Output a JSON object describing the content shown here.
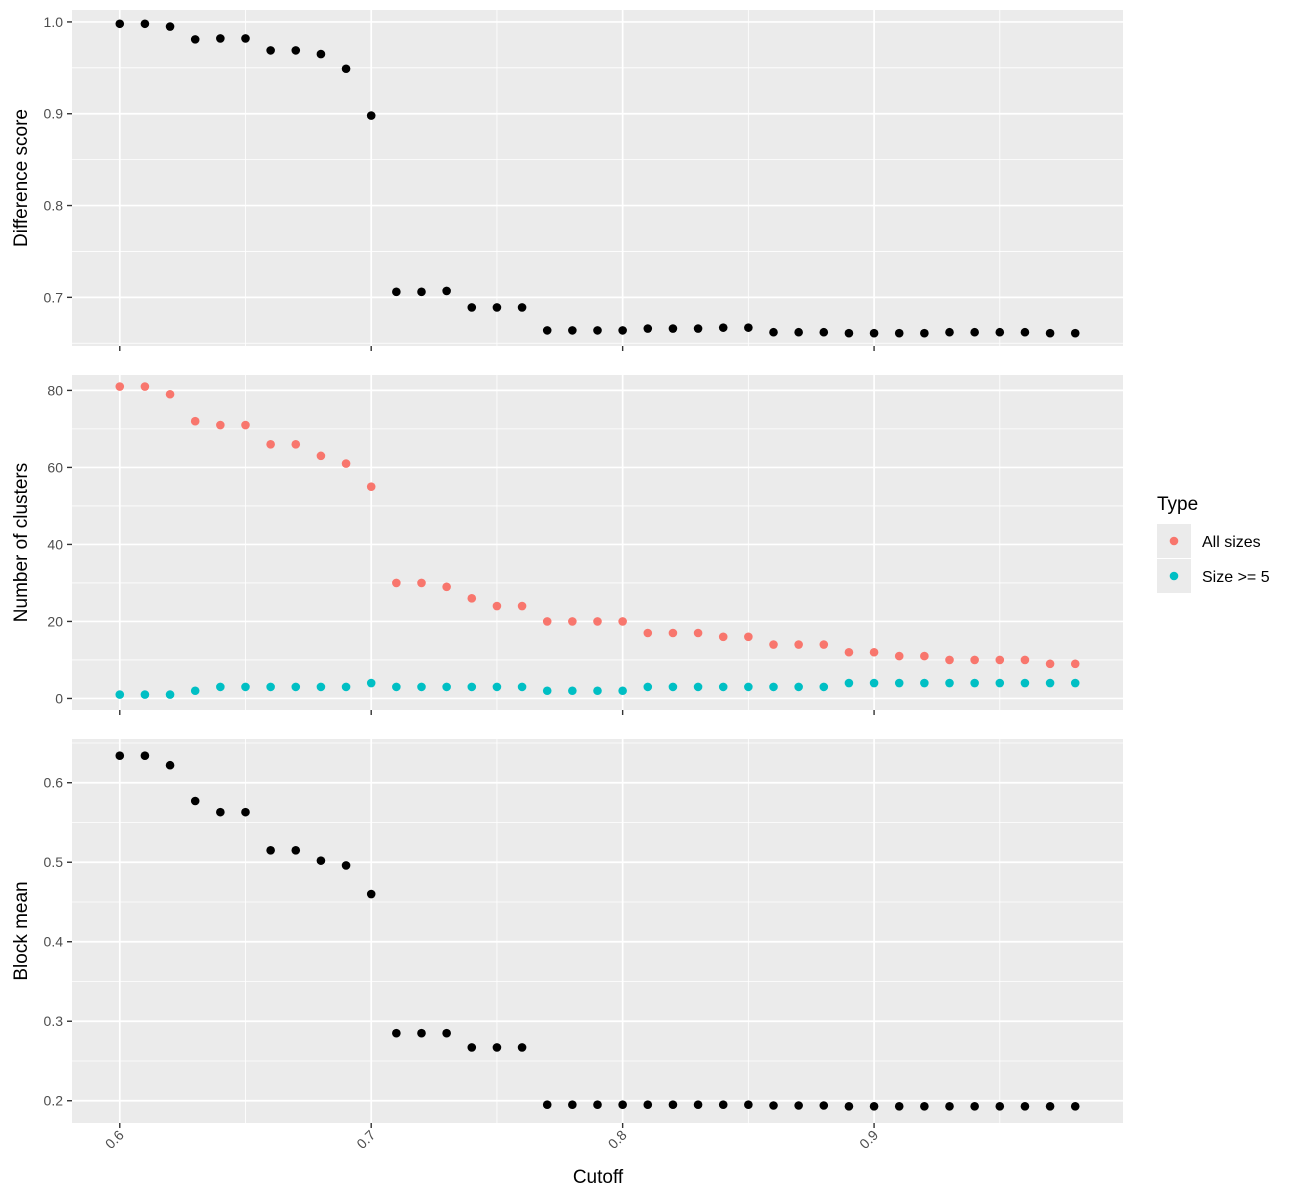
{
  "chart_data": [
    {
      "type": "scatter",
      "title": "",
      "xlabel": "",
      "ylabel": "Difference score",
      "xlim": [
        0.581,
        0.999
      ],
      "ylim": [
        0.647,
        1.013
      ],
      "x_ticks": [
        0.6,
        0.7,
        0.8,
        0.9
      ],
      "y_ticks": [
        0.7,
        0.8,
        0.9,
        1.0
      ],
      "y_tick_labels": [
        "0.7",
        "0.8",
        "0.9",
        "1.0"
      ],
      "series": [
        {
          "color": "#000000",
          "x": [
            0.6,
            0.61,
            0.62,
            0.63,
            0.64,
            0.65,
            0.66,
            0.67,
            0.68,
            0.69,
            0.7,
            0.71,
            0.72,
            0.73,
            0.74,
            0.75,
            0.76,
            0.77,
            0.78,
            0.79,
            0.8,
            0.81,
            0.82,
            0.83,
            0.84,
            0.85,
            0.86,
            0.87,
            0.88,
            0.89,
            0.9,
            0.91,
            0.92,
            0.93,
            0.94,
            0.95,
            0.96,
            0.97,
            0.98
          ],
          "y": [
            0.998,
            0.998,
            0.995,
            0.981,
            0.982,
            0.982,
            0.969,
            0.969,
            0.965,
            0.949,
            0.898,
            0.706,
            0.706,
            0.707,
            0.689,
            0.689,
            0.689,
            0.664,
            0.664,
            0.664,
            0.664,
            0.666,
            0.666,
            0.666,
            0.667,
            0.667,
            0.662,
            0.662,
            0.662,
            0.661,
            0.661,
            0.661,
            0.661,
            0.662,
            0.662,
            0.662,
            0.662,
            0.661,
            0.661
          ]
        }
      ],
      "grid": true
    },
    {
      "type": "scatter",
      "title": "",
      "xlabel": "",
      "ylabel": "Number of clusters",
      "xlim": [
        0.581,
        0.999
      ],
      "ylim": [
        -3,
        84
      ],
      "x_ticks": [
        0.6,
        0.7,
        0.8,
        0.9
      ],
      "y_ticks": [
        0,
        20,
        40,
        60,
        80
      ],
      "y_tick_labels": [
        "0",
        "20",
        "40",
        "60",
        "80"
      ],
      "series": [
        {
          "name": "All sizes",
          "color": "#F8766D",
          "x": [
            0.6,
            0.61,
            0.62,
            0.63,
            0.64,
            0.65,
            0.66,
            0.67,
            0.68,
            0.69,
            0.7,
            0.71,
            0.72,
            0.73,
            0.74,
            0.75,
            0.76,
            0.77,
            0.78,
            0.79,
            0.8,
            0.81,
            0.82,
            0.83,
            0.84,
            0.85,
            0.86,
            0.87,
            0.88,
            0.89,
            0.9,
            0.91,
            0.92,
            0.93,
            0.94,
            0.95,
            0.96,
            0.97,
            0.98
          ],
          "y": [
            81,
            81,
            79,
            72,
            71,
            71,
            66,
            66,
            63,
            61,
            55,
            30,
            30,
            29,
            26,
            24,
            24,
            20,
            20,
            20,
            20,
            17,
            17,
            17,
            16,
            16,
            14,
            14,
            14,
            12,
            12,
            11,
            11,
            10,
            10,
            10,
            10,
            9,
            9
          ]
        },
        {
          "name": "Size >= 5",
          "color": "#00BFC4",
          "x": [
            0.6,
            0.61,
            0.62,
            0.63,
            0.64,
            0.65,
            0.66,
            0.67,
            0.68,
            0.69,
            0.7,
            0.71,
            0.72,
            0.73,
            0.74,
            0.75,
            0.76,
            0.77,
            0.78,
            0.79,
            0.8,
            0.81,
            0.82,
            0.83,
            0.84,
            0.85,
            0.86,
            0.87,
            0.88,
            0.89,
            0.9,
            0.91,
            0.92,
            0.93,
            0.94,
            0.95,
            0.96,
            0.97,
            0.98
          ],
          "y": [
            1,
            1,
            1,
            2,
            3,
            3,
            3,
            3,
            3,
            3,
            4,
            3,
            3,
            3,
            3,
            3,
            3,
            2,
            2,
            2,
            2,
            3,
            3,
            3,
            3,
            3,
            3,
            3,
            3,
            4,
            4,
            4,
            4,
            4,
            4,
            4,
            4,
            4,
            4
          ]
        }
      ],
      "legend": {
        "title": "Type",
        "position": "right"
      },
      "grid": true
    },
    {
      "type": "scatter",
      "title": "",
      "xlabel": "Cutoff",
      "ylabel": "Block mean",
      "xlim": [
        0.581,
        0.999
      ],
      "ylim": [
        0.172,
        0.655
      ],
      "x_ticks": [
        0.6,
        0.7,
        0.8,
        0.9
      ],
      "x_tick_labels": [
        "0.6",
        "0.7",
        "0.8",
        "0.9"
      ],
      "y_ticks": [
        0.2,
        0.3,
        0.4,
        0.5,
        0.6
      ],
      "y_tick_labels": [
        "0.2",
        "0.3",
        "0.4",
        "0.5",
        "0.6"
      ],
      "series": [
        {
          "color": "#000000",
          "x": [
            0.6,
            0.61,
            0.62,
            0.63,
            0.64,
            0.65,
            0.66,
            0.67,
            0.68,
            0.69,
            0.7,
            0.71,
            0.72,
            0.73,
            0.74,
            0.75,
            0.76,
            0.77,
            0.78,
            0.79,
            0.8,
            0.81,
            0.82,
            0.83,
            0.84,
            0.85,
            0.86,
            0.87,
            0.88,
            0.89,
            0.9,
            0.91,
            0.92,
            0.93,
            0.94,
            0.95,
            0.96,
            0.97,
            0.98
          ],
          "y": [
            0.634,
            0.634,
            0.622,
            0.577,
            0.563,
            0.563,
            0.515,
            0.515,
            0.502,
            0.496,
            0.46,
            0.285,
            0.285,
            0.285,
            0.267,
            0.267,
            0.267,
            0.195,
            0.195,
            0.195,
            0.195,
            0.195,
            0.195,
            0.195,
            0.195,
            0.195,
            0.194,
            0.194,
            0.194,
            0.193,
            0.193,
            0.193,
            0.193,
            0.193,
            0.193,
            0.193,
            0.193,
            0.193,
            0.193
          ]
        }
      ],
      "grid": true
    }
  ]
}
